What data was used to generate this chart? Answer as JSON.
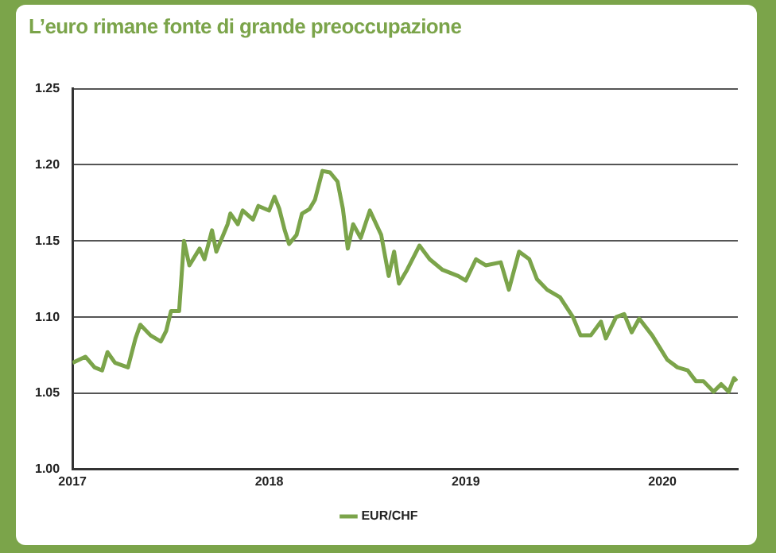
{
  "chart_data": {
    "type": "line",
    "title": "L’euro rimane fonte di grande preoccupazione",
    "x": [
      "2017-01-01",
      "2017-01-25",
      "2017-02-11",
      "2017-02-25",
      "2017-03-07",
      "2017-03-21",
      "2017-04-14",
      "2017-04-28",
      "2017-05-07",
      "2017-05-26",
      "2017-06-14",
      "2017-06-24",
      "2017-07-03",
      "2017-07-18",
      "2017-07-27",
      "2017-08-06",
      "2017-08-25",
      "2017-09-03",
      "2017-09-17",
      "2017-09-25",
      "2017-10-16",
      "2017-10-21",
      "2017-11-04",
      "2017-11-13",
      "2017-12-02",
      "2017-12-12",
      "2018-01-01",
      "2018-01-11",
      "2018-01-20",
      "2018-01-30",
      "2018-02-07",
      "2018-02-21",
      "2018-03-03",
      "2018-03-17",
      "2018-03-27",
      "2018-04-10",
      "2018-04-24",
      "2018-05-08",
      "2018-05-18",
      "2018-05-27",
      "2018-06-06",
      "2018-06-20",
      "2018-07-07",
      "2018-07-28",
      "2018-08-11",
      "2018-08-21",
      "2018-08-30",
      "2018-09-14",
      "2018-10-07",
      "2018-10-26",
      "2018-11-19",
      "2018-12-18",
      "2019-01-01",
      "2019-01-20",
      "2019-02-07",
      "2019-03-07",
      "2019-03-22",
      "2019-04-10",
      "2019-04-29",
      "2019-05-13",
      "2019-06-01",
      "2019-06-25",
      "2019-07-19",
      "2019-08-02",
      "2019-08-21",
      "2019-09-09",
      "2019-09-18",
      "2019-10-07",
      "2019-10-22",
      "2019-11-05",
      "2019-11-19",
      "2019-12-13",
      "2020-01-10",
      "2020-01-29",
      "2020-02-17",
      "2020-03-03",
      "2020-03-17",
      "2020-04-05",
      "2020-04-19",
      "2020-05-03",
      "2020-05-13",
      "2020-05-18"
    ],
    "series": [
      {
        "name": "EUR/CHF",
        "color": "#7ba44a",
        "values": [
          1.07,
          1.074,
          1.067,
          1.065,
          1.077,
          1.07,
          1.067,
          1.086,
          1.095,
          1.088,
          1.084,
          1.091,
          1.104,
          1.104,
          1.15,
          1.134,
          1.145,
          1.138,
          1.157,
          1.143,
          1.161,
          1.168,
          1.161,
          1.17,
          1.164,
          1.173,
          1.17,
          1.179,
          1.171,
          1.157,
          1.148,
          1.154,
          1.168,
          1.171,
          1.177,
          1.196,
          1.195,
          1.189,
          1.171,
          1.145,
          1.161,
          1.152,
          1.17,
          1.154,
          1.127,
          1.143,
          1.122,
          1.131,
          1.147,
          1.138,
          1.131,
          1.127,
          1.124,
          1.138,
          1.134,
          1.136,
          1.118,
          1.143,
          1.138,
          1.125,
          1.118,
          1.113,
          1.1,
          1.088,
          1.088,
          1.097,
          1.086,
          1.1,
          1.102,
          1.09,
          1.099,
          1.088,
          1.072,
          1.067,
          1.065,
          1.058,
          1.058,
          1.051,
          1.056,
          1.051,
          1.06,
          1.058
        ]
      }
    ],
    "xlim": [
      "2017",
      "2020-05-20"
    ],
    "xticks": [
      "2017",
      "2018",
      "2019",
      "2020"
    ],
    "ylim": [
      1.0,
      1.25
    ],
    "yticks": [
      {
        "value": 1.0,
        "label": "1.00"
      },
      {
        "value": 1.05,
        "label": "1.05"
      },
      {
        "value": 1.1,
        "label": "1.10"
      },
      {
        "value": 1.15,
        "label": "1.15"
      },
      {
        "value": 1.2,
        "label": "1.20"
      },
      {
        "value": 1.25,
        "label": "1.25"
      }
    ],
    "grid": "y",
    "legend": "bottom",
    "marker": "none",
    "line_style": "solid"
  }
}
